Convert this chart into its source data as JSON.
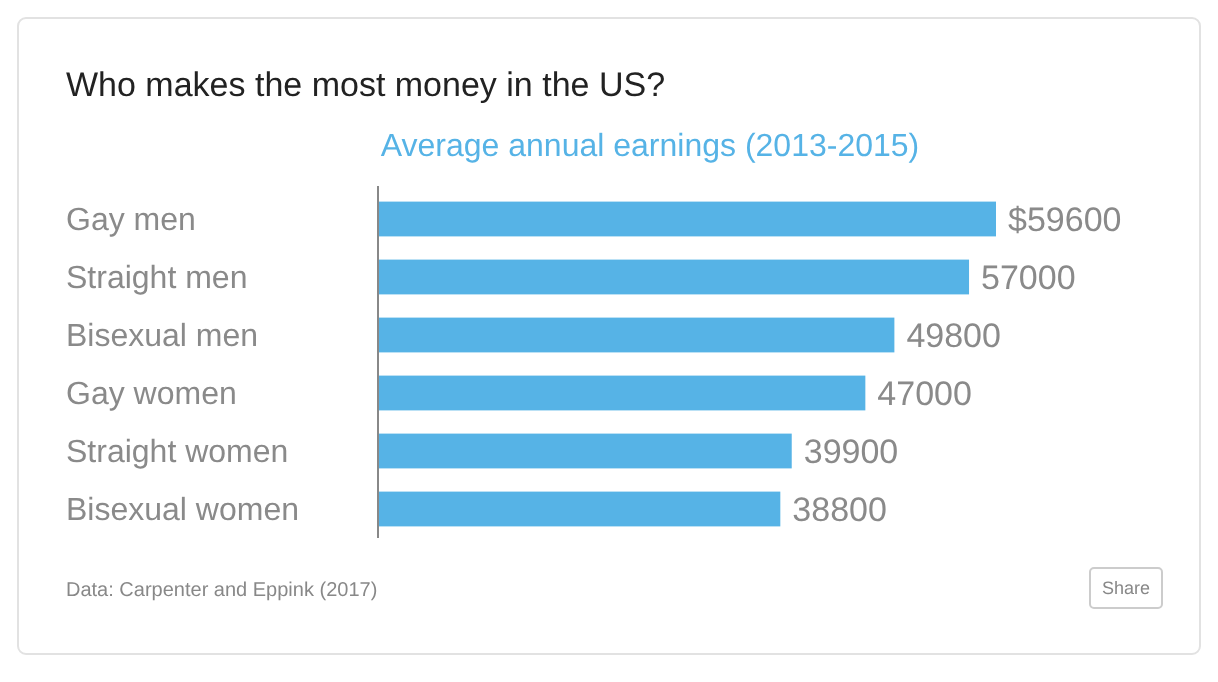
{
  "chart_data": {
    "type": "bar",
    "orientation": "horizontal",
    "title": "Who makes the most money in the US?",
    "subtitle": "Average annual earnings (2013-2015)",
    "categories": [
      "Gay men",
      "Straight men",
      "Bisexual men",
      "Gay women",
      "Straight women",
      "Bisexual women"
    ],
    "values": [
      59600,
      57000,
      49800,
      47000,
      39900,
      38800
    ],
    "value_labels": [
      "$59600",
      "57000",
      "49800",
      "47000",
      "39900",
      "38800"
    ],
    "color": "#56b3e6",
    "annotations": [
      "Data: Carpenter and Eppink (2017)",
      "Share"
    ]
  }
}
